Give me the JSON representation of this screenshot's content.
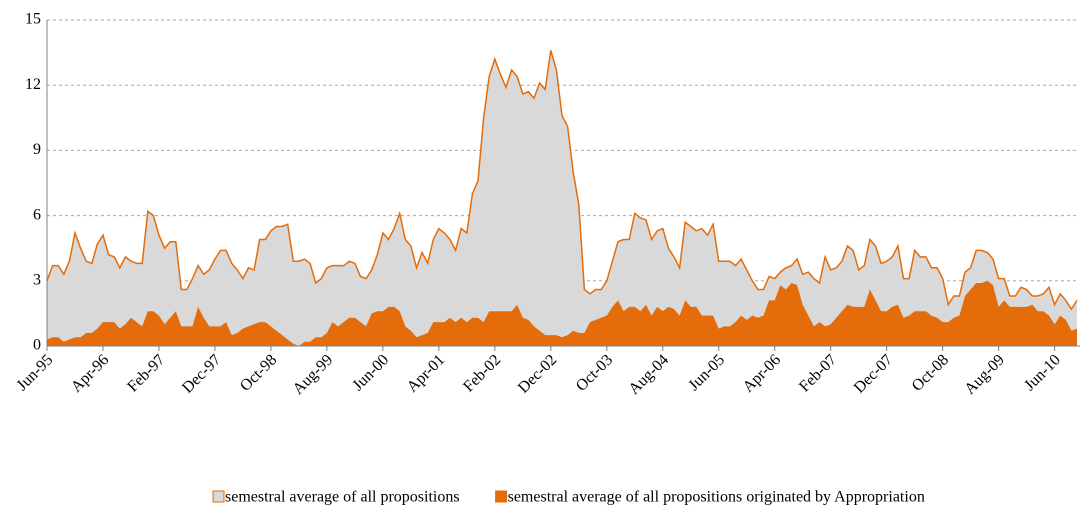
{
  "chart_data": {
    "type": "area",
    "categories": [
      "Jun-95",
      null,
      null,
      null,
      null,
      null,
      null,
      null,
      null,
      null,
      "Apr-96",
      null,
      null,
      null,
      null,
      null,
      null,
      null,
      null,
      null,
      "Feb-97",
      null,
      null,
      null,
      null,
      null,
      null,
      null,
      null,
      null,
      "Dec-97",
      null,
      null,
      null,
      null,
      null,
      null,
      null,
      null,
      null,
      "Oct-98",
      null,
      null,
      null,
      null,
      null,
      null,
      null,
      null,
      null,
      "Aug-99",
      null,
      null,
      null,
      null,
      null,
      null,
      null,
      null,
      null,
      "Jun-00",
      null,
      null,
      null,
      null,
      null,
      null,
      null,
      null,
      null,
      "Apr-01",
      null,
      null,
      null,
      null,
      null,
      null,
      null,
      null,
      null,
      "Feb-02",
      null,
      null,
      null,
      null,
      null,
      null,
      null,
      null,
      null,
      "Dec-02",
      null,
      null,
      null,
      null,
      null,
      null,
      null,
      null,
      null,
      "Oct-03",
      null,
      null,
      null,
      null,
      null,
      null,
      null,
      null,
      null,
      "Aug-04",
      null,
      null,
      null,
      null,
      null,
      null,
      null,
      null,
      null,
      "Jun-05",
      null,
      null,
      null,
      null,
      null,
      null,
      null,
      null,
      null,
      "Apr-06",
      null,
      null,
      null,
      null,
      null,
      null,
      null,
      null,
      null,
      "Feb-07",
      null,
      null,
      null,
      null,
      null,
      null,
      null,
      null,
      null,
      "Dec-07",
      null,
      null,
      null,
      null,
      null,
      null,
      null,
      null,
      null,
      "Oct-08",
      null,
      null,
      null,
      null,
      null,
      null,
      null,
      null,
      null,
      "Aug-09",
      null,
      null,
      null,
      null,
      null,
      null,
      null,
      null,
      null,
      "Jun-10",
      null,
      null,
      null,
      null
    ],
    "series": [
      {
        "name": "semestral average of all propositions",
        "color": "#d9d9d9",
        "line_color": "#e46c0a",
        "values": [
          3.0,
          3.7,
          3.7,
          3.3,
          3.9,
          5.2,
          4.5,
          3.9,
          3.8,
          4.7,
          5.1,
          4.2,
          4.1,
          3.6,
          4.1,
          3.9,
          3.8,
          3.8,
          6.2,
          6.0,
          5.1,
          4.5,
          4.8,
          4.8,
          2.6,
          2.6,
          3.1,
          3.7,
          3.3,
          3.5,
          4.0,
          4.4,
          4.4,
          3.8,
          3.5,
          3.1,
          3.6,
          3.5,
          4.9,
          4.9,
          5.3,
          5.5,
          5.5,
          5.6,
          3.9,
          3.9,
          4.0,
          3.8,
          2.9,
          3.1,
          3.6,
          3.7,
          3.7,
          3.7,
          3.9,
          3.8,
          3.2,
          3.1,
          3.5,
          4.2,
          5.2,
          4.9,
          5.4,
          6.1,
          4.9,
          4.6,
          3.6,
          4.3,
          3.8,
          4.9,
          5.4,
          5.2,
          4.9,
          4.4,
          5.4,
          5.2,
          7.0,
          7.6,
          10.5,
          12.4,
          13.2,
          12.5,
          11.9,
          12.7,
          12.4,
          11.6,
          11.7,
          11.4,
          12.1,
          11.8,
          13.6,
          12.7,
          10.6,
          10.1,
          8.0,
          6.5,
          2.6,
          2.4,
          2.6,
          2.6,
          3.0,
          3.9,
          4.8,
          4.9,
          4.9,
          6.1,
          5.9,
          5.8,
          4.9,
          5.3,
          5.4,
          4.5,
          4.1,
          3.6,
          5.7,
          5.5,
          5.3,
          5.4,
          5.1,
          5.6,
          3.9,
          3.9,
          3.9,
          3.7,
          4.0,
          3.5,
          3.0,
          2.6,
          2.6,
          3.2,
          3.1,
          3.4,
          3.6,
          3.7,
          4.0,
          3.3,
          3.4,
          3.1,
          2.9,
          4.1,
          3.5,
          3.6,
          3.9,
          4.6,
          4.4,
          3.5,
          3.7,
          4.9,
          4.6,
          3.8,
          3.9,
          4.1,
          4.6,
          3.1,
          3.1,
          4.4,
          4.1,
          4.1,
          3.6,
          3.6,
          3.1,
          1.9,
          2.3,
          2.3,
          3.4,
          3.6,
          4.4,
          4.4,
          4.3,
          4.0,
          3.1,
          3.1,
          2.3,
          2.3,
          2.7,
          2.6,
          2.3,
          2.3,
          2.4,
          2.7,
          1.9,
          2.4,
          2.1,
          1.7,
          2.1
        ]
      },
      {
        "name": "semestral average of all propositions originated by Appropriation",
        "color": "#e46c0a",
        "values": [
          0.3,
          0.4,
          0.4,
          0.2,
          0.3,
          0.4,
          0.4,
          0.6,
          0.6,
          0.8,
          1.1,
          1.1,
          1.1,
          0.8,
          1.0,
          1.3,
          1.1,
          0.9,
          1.6,
          1.6,
          1.4,
          1.0,
          1.3,
          1.6,
          0.9,
          0.9,
          0.9,
          1.8,
          1.3,
          0.9,
          0.9,
          0.9,
          1.1,
          0.5,
          0.6,
          0.8,
          0.9,
          1.0,
          1.1,
          1.1,
          0.9,
          0.7,
          0.5,
          0.3,
          0.1,
          0.0,
          0.2,
          0.2,
          0.4,
          0.4,
          0.6,
          1.1,
          0.9,
          1.1,
          1.3,
          1.3,
          1.1,
          0.9,
          1.5,
          1.6,
          1.6,
          1.8,
          1.8,
          1.6,
          0.9,
          0.7,
          0.4,
          0.5,
          0.6,
          1.1,
          1.1,
          1.1,
          1.3,
          1.1,
          1.3,
          1.1,
          1.3,
          1.3,
          1.1,
          1.6,
          1.6,
          1.6,
          1.6,
          1.6,
          1.9,
          1.3,
          1.2,
          0.9,
          0.7,
          0.5,
          0.5,
          0.5,
          0.4,
          0.5,
          0.7,
          0.6,
          0.6,
          1.1,
          1.2,
          1.3,
          1.4,
          1.8,
          2.1,
          1.6,
          1.8,
          1.8,
          1.6,
          1.9,
          1.4,
          1.8,
          1.6,
          1.8,
          1.7,
          1.4,
          2.1,
          1.8,
          1.8,
          1.4,
          1.4,
          1.4,
          0.8,
          0.9,
          0.9,
          1.1,
          1.4,
          1.2,
          1.4,
          1.3,
          1.4,
          2.1,
          2.1,
          2.8,
          2.6,
          2.9,
          2.8,
          1.9,
          1.4,
          0.9,
          1.1,
          0.9,
          1.0,
          1.3,
          1.6,
          1.9,
          1.8,
          1.8,
          1.8,
          2.6,
          2.1,
          1.6,
          1.6,
          1.8,
          1.9,
          1.3,
          1.4,
          1.6,
          1.6,
          1.6,
          1.4,
          1.3,
          1.1,
          1.1,
          1.3,
          1.4,
          2.3,
          2.6,
          2.9,
          2.9,
          3.0,
          2.8,
          1.8,
          2.1,
          1.8,
          1.8,
          1.8,
          1.8,
          1.9,
          1.6,
          1.6,
          1.4,
          1.0,
          1.4,
          1.2,
          0.7,
          0.8
        ]
      }
    ],
    "ylim": [
      0,
      15
    ],
    "yticks": [
      0,
      3,
      6,
      9,
      12,
      15
    ],
    "grid": true,
    "legend": "bottom"
  }
}
